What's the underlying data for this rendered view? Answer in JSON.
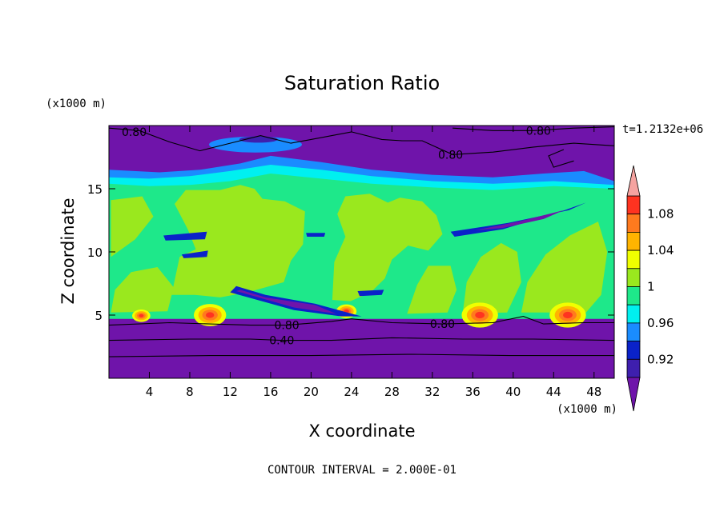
{
  "chart_data": {
    "type": "heatmap",
    "title": "Saturation Ratio",
    "xlabel": "X coordinate",
    "ylabel": "Z coordinate",
    "x_units": "(x1000 m)",
    "y_units": "(x1000 m)",
    "time_label": "t=1.2132e+06",
    "footer": "CONTOUR INTERVAL = 2.000E-01",
    "xlim": [
      0,
      50
    ],
    "ylim": [
      0,
      20
    ],
    "x_ticks": [
      4,
      8,
      12,
      16,
      20,
      24,
      28,
      32,
      36,
      40,
      44,
      48
    ],
    "y_ticks": [
      5,
      10,
      15
    ],
    "colorbar": {
      "tick_labels": [
        "1.08",
        "1.04",
        "1",
        "0.96",
        "0.92"
      ],
      "tick_values": [
        1.08,
        1.04,
        1.0,
        0.96,
        0.92
      ],
      "bands": [
        {
          "lo": null,
          "hi": 0.9,
          "color": "#6f14aa"
        },
        {
          "lo": 0.9,
          "hi": 0.92,
          "color": "#3e1fae"
        },
        {
          "lo": 0.92,
          "hi": 0.94,
          "color": "#0a22c9"
        },
        {
          "lo": 0.94,
          "hi": 0.96,
          "color": "#1a8cff"
        },
        {
          "lo": 0.96,
          "hi": 0.98,
          "color": "#00f0f0"
        },
        {
          "lo": 0.98,
          "hi": 1.0,
          "color": "#1ee88a"
        },
        {
          "lo": 1.0,
          "hi": 1.02,
          "color": "#9ae81e"
        },
        {
          "lo": 1.02,
          "hi": 1.04,
          "color": "#f0ff00"
        },
        {
          "lo": 1.04,
          "hi": 1.06,
          "color": "#ffb400"
        },
        {
          "lo": 1.06,
          "hi": 1.08,
          "color": "#ff7a1e"
        },
        {
          "lo": 1.08,
          "hi": 1.1,
          "color": "#ff3320"
        },
        {
          "lo": 1.1,
          "hi": null,
          "color": "#f5a3a0"
        }
      ]
    },
    "contour_labels": [
      {
        "text": "0.80",
        "x": 2.5,
        "z": 19.5
      },
      {
        "text": "0.80",
        "x": 42.5,
        "z": 19.6
      },
      {
        "text": "0.80",
        "x": 33.8,
        "z": 17.7
      },
      {
        "text": "0.80",
        "x": 17.6,
        "z": 4.2
      },
      {
        "text": "0.80",
        "x": 33.0,
        "z": 4.3
      },
      {
        "text": "0.40",
        "x": 17.1,
        "z": 3.0
      }
    ],
    "regions": [
      {
        "description_value": 0.8,
        "x": [
          0,
          50
        ],
        "z": [
          0,
          4.7
        ]
      },
      {
        "description_value": 0.99,
        "x": [
          0,
          50
        ],
        "z": [
          4.7,
          15.3
        ]
      },
      {
        "description_value": 1.01,
        "x": [
          6.2,
          19.4
        ],
        "z": [
          6.5,
          15.1
        ]
      },
      {
        "description_value": 1.01,
        "x": [
          22,
          28
        ],
        "z": [
          6.5,
          14.6
        ]
      },
      {
        "description_value": 0.8,
        "x": [
          0,
          50
        ],
        "z": [
          15.3,
          20
        ]
      }
    ]
  }
}
